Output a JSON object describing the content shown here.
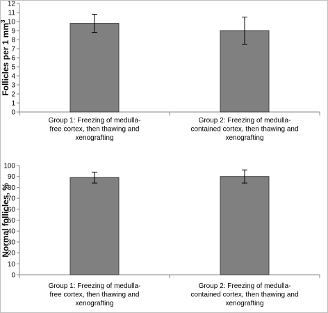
{
  "chart_data": [
    {
      "type": "bar",
      "categories": [
        [
          "Group 1: Freezing of medulla-",
          "free cortex,  then thawing and",
          "xenografting"
        ],
        [
          "Group 2: Freezing of medulla-",
          "contained cortex,  then thawing and",
          "xenografting"
        ]
      ],
      "values": [
        9.8,
        9.0
      ],
      "error": [
        1.0,
        1.5
      ],
      "ylabel": "Follicles per 1 mm³",
      "ylabel_parts": {
        "base": "Follicles per 1 mm",
        "sup": "3"
      },
      "ylim": [
        0,
        12
      ],
      "yticks": [
        0,
        1,
        2,
        3,
        4,
        5,
        6,
        7,
        8,
        9,
        10,
        11,
        12
      ],
      "grid": false,
      "bar_color": "#808080"
    },
    {
      "type": "bar",
      "categories": [
        [
          "Group 1: Freezing of medulla-",
          "free cortex,  then thawing and",
          "xenografting"
        ],
        [
          "Group 2:  Freezing of medulla-",
          "contained cortex,  then thawing and",
          "xenografting"
        ]
      ],
      "values": [
        89,
        90
      ],
      "error": [
        5,
        6
      ],
      "ylabel": "Normal follicles, %",
      "ylim": [
        0,
        100
      ],
      "yticks": [
        0,
        10,
        20,
        30,
        40,
        50,
        60,
        70,
        80,
        90,
        100
      ],
      "grid": false,
      "bar_color": "#808080"
    }
  ]
}
